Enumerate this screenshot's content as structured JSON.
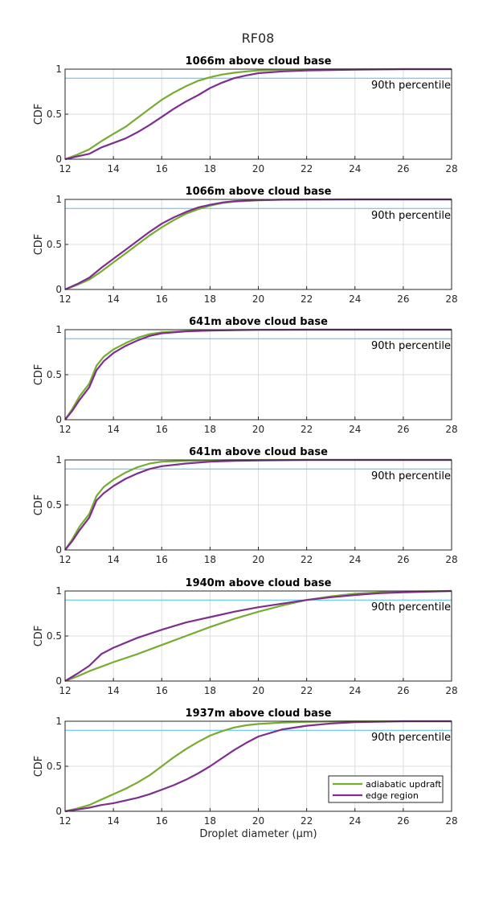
{
  "figure": {
    "title": "RF08"
  },
  "chart_data": [
    {
      "type": "line",
      "title": "1066m above cloud base",
      "ylabel": "CDF",
      "xlim": [
        12,
        28
      ],
      "ylim": [
        0,
        1
      ],
      "xticks": [
        12,
        14,
        16,
        18,
        20,
        22,
        24,
        26,
        28
      ],
      "yticks": [
        0,
        0.5,
        1
      ],
      "grid": true,
      "reference_line": {
        "y": 0.9,
        "label": "90th percentile",
        "color": "#4DBEEE"
      },
      "series": [
        {
          "name": "adiabatic updraft",
          "color": "#77AC30",
          "x": [
            12,
            12.5,
            13,
            13.5,
            14,
            14.5,
            15,
            15.5,
            16,
            16.5,
            17,
            17.5,
            18,
            18.5,
            19,
            19.5,
            20,
            21,
            22,
            23,
            24,
            26,
            28
          ],
          "y": [
            0,
            0.05,
            0.11,
            0.2,
            0.28,
            0.36,
            0.46,
            0.56,
            0.66,
            0.74,
            0.81,
            0.87,
            0.91,
            0.94,
            0.96,
            0.975,
            0.985,
            0.993,
            0.997,
            0.999,
            1,
            1,
            1
          ]
        },
        {
          "name": "edge region",
          "color": "#7E2F8E",
          "x": [
            12,
            12.5,
            13,
            13.5,
            14,
            14.5,
            15,
            15.5,
            16,
            16.5,
            17,
            17.5,
            18,
            18.5,
            19,
            19.5,
            20,
            21,
            22,
            23,
            24,
            26,
            28
          ],
          "y": [
            0,
            0.03,
            0.06,
            0.13,
            0.18,
            0.23,
            0.3,
            0.38,
            0.47,
            0.56,
            0.64,
            0.71,
            0.79,
            0.85,
            0.9,
            0.93,
            0.955,
            0.975,
            0.985,
            0.99,
            0.995,
            1,
            1
          ]
        }
      ]
    },
    {
      "type": "line",
      "title": "1066m above cloud base",
      "ylabel": "CDF",
      "xlim": [
        12,
        28
      ],
      "ylim": [
        0,
        1
      ],
      "xticks": [
        12,
        14,
        16,
        18,
        20,
        22,
        24,
        26,
        28
      ],
      "yticks": [
        0,
        0.5,
        1
      ],
      "grid": true,
      "reference_line": {
        "y": 0.9,
        "label": "90th percentile",
        "color": "#4DBEEE"
      },
      "series": [
        {
          "name": "adiabatic updraft",
          "color": "#77AC30",
          "x": [
            12,
            12.5,
            13,
            13.5,
            14,
            14.5,
            15,
            15.5,
            16,
            16.5,
            17,
            17.5,
            18,
            18.5,
            19,
            20,
            21,
            22,
            24,
            28
          ],
          "y": [
            0,
            0.05,
            0.11,
            0.2,
            0.3,
            0.4,
            0.5,
            0.6,
            0.69,
            0.77,
            0.84,
            0.89,
            0.93,
            0.96,
            0.975,
            0.99,
            0.996,
            0.999,
            1,
            1
          ]
        },
        {
          "name": "edge region",
          "color": "#7E2F8E",
          "x": [
            12,
            12.5,
            13,
            13.5,
            14,
            14.5,
            15,
            15.5,
            16,
            16.5,
            17,
            17.5,
            18,
            18.5,
            19,
            20,
            21,
            22,
            24,
            28
          ],
          "y": [
            0,
            0.06,
            0.13,
            0.24,
            0.34,
            0.44,
            0.54,
            0.64,
            0.73,
            0.8,
            0.86,
            0.91,
            0.94,
            0.965,
            0.98,
            0.992,
            0.997,
            0.999,
            1,
            1
          ]
        }
      ]
    },
    {
      "type": "line",
      "title": "641m above cloud base",
      "ylabel": "CDF",
      "xlim": [
        12,
        28
      ],
      "ylim": [
        0,
        1
      ],
      "xticks": [
        12,
        14,
        16,
        18,
        20,
        22,
        24,
        26,
        28
      ],
      "yticks": [
        0,
        0.5,
        1
      ],
      "grid": true,
      "reference_line": {
        "y": 0.9,
        "label": "90th percentile",
        "color": "#4DBEEE"
      },
      "series": [
        {
          "name": "adiabatic updraft",
          "color": "#77AC30",
          "x": [
            12,
            12.3,
            12.6,
            13,
            13.3,
            13.6,
            14,
            14.5,
            15,
            15.5,
            16,
            17,
            18,
            19,
            20,
            22,
            28
          ],
          "y": [
            0,
            0.12,
            0.26,
            0.4,
            0.6,
            0.7,
            0.78,
            0.85,
            0.91,
            0.95,
            0.97,
            0.985,
            0.992,
            0.996,
            0.998,
            1,
            1
          ]
        },
        {
          "name": "edge region",
          "color": "#7E2F8E",
          "x": [
            12,
            12.3,
            12.6,
            13,
            13.3,
            13.6,
            14,
            14.5,
            15,
            15.5,
            16,
            17,
            18,
            19,
            20,
            22,
            28
          ],
          "y": [
            0,
            0.1,
            0.22,
            0.36,
            0.55,
            0.65,
            0.74,
            0.82,
            0.88,
            0.93,
            0.96,
            0.98,
            0.99,
            0.995,
            0.998,
            1,
            1
          ]
        }
      ]
    },
    {
      "type": "line",
      "title": "641m above cloud base",
      "ylabel": "CDF",
      "xlim": [
        12,
        28
      ],
      "ylim": [
        0,
        1
      ],
      "xticks": [
        12,
        14,
        16,
        18,
        20,
        22,
        24,
        26,
        28
      ],
      "yticks": [
        0,
        0.5,
        1
      ],
      "grid": true,
      "reference_line": {
        "y": 0.9,
        "label": "90th percentile",
        "color": "#4DBEEE"
      },
      "series": [
        {
          "name": "adiabatic updraft",
          "color": "#77AC30",
          "x": [
            12,
            12.3,
            12.6,
            13,
            13.3,
            13.6,
            14,
            14.5,
            15,
            15.5,
            16,
            17,
            18,
            19,
            20,
            22,
            28
          ],
          "y": [
            0,
            0.12,
            0.26,
            0.4,
            0.6,
            0.7,
            0.78,
            0.86,
            0.92,
            0.96,
            0.98,
            0.99,
            0.995,
            0.998,
            1,
            1,
            1
          ]
        },
        {
          "name": "edge region",
          "color": "#7E2F8E",
          "x": [
            12,
            12.3,
            12.6,
            13,
            13.3,
            13.6,
            14,
            14.5,
            15,
            15.5,
            16,
            17,
            18,
            19,
            20,
            22,
            28
          ],
          "y": [
            0,
            0.1,
            0.22,
            0.36,
            0.55,
            0.63,
            0.71,
            0.79,
            0.85,
            0.9,
            0.93,
            0.96,
            0.98,
            0.99,
            0.995,
            1,
            1
          ]
        }
      ]
    },
    {
      "type": "line",
      "title": "1940m above cloud base",
      "ylabel": "CDF",
      "xlim": [
        12,
        28
      ],
      "ylim": [
        0,
        1
      ],
      "xticks": [
        12,
        14,
        16,
        18,
        20,
        22,
        24,
        26,
        28
      ],
      "yticks": [
        0,
        0.5,
        1
      ],
      "grid": true,
      "reference_line": {
        "y": 0.9,
        "label": "90th percentile",
        "color": "#4DBEEE"
      },
      "series": [
        {
          "name": "adiabatic updraft",
          "color": "#77AC30",
          "x": [
            12,
            12.5,
            13,
            13.5,
            14,
            15,
            16,
            17,
            18,
            19,
            20,
            21,
            22,
            23,
            24,
            25,
            26,
            28
          ],
          "y": [
            0,
            0.05,
            0.11,
            0.16,
            0.21,
            0.3,
            0.4,
            0.5,
            0.6,
            0.69,
            0.77,
            0.84,
            0.9,
            0.94,
            0.97,
            0.985,
            0.995,
            1
          ]
        },
        {
          "name": "edge region",
          "color": "#7E2F8E",
          "x": [
            12,
            12.5,
            13,
            13.5,
            14,
            15,
            16,
            17,
            18,
            19,
            20,
            21,
            22,
            23,
            24,
            25,
            26,
            28
          ],
          "y": [
            0,
            0.08,
            0.17,
            0.3,
            0.37,
            0.48,
            0.57,
            0.65,
            0.71,
            0.77,
            0.82,
            0.86,
            0.9,
            0.93,
            0.955,
            0.975,
            0.985,
            1
          ]
        }
      ]
    },
    {
      "type": "line",
      "title": "1937m above cloud base",
      "ylabel": "CDF",
      "xlabel": "Droplet diameter (μm)",
      "xlim": [
        12,
        28
      ],
      "ylim": [
        0,
        1
      ],
      "xticks": [
        12,
        14,
        16,
        18,
        20,
        22,
        24,
        26,
        28
      ],
      "yticks": [
        0,
        0.5,
        1
      ],
      "grid": true,
      "legend": "bottom-right",
      "reference_line": {
        "y": 0.9,
        "label": "90th percentile",
        "color": "#4DBEEE"
      },
      "series": [
        {
          "name": "adiabatic updraft",
          "color": "#77AC30",
          "x": [
            12,
            12.5,
            13,
            13.5,
            14,
            14.5,
            15,
            15.5,
            16,
            16.5,
            17,
            17.5,
            18,
            18.5,
            19,
            19.5,
            20,
            21,
            22,
            23,
            24,
            26,
            28
          ],
          "y": [
            0,
            0.03,
            0.07,
            0.13,
            0.19,
            0.25,
            0.32,
            0.4,
            0.5,
            0.6,
            0.69,
            0.77,
            0.84,
            0.89,
            0.93,
            0.955,
            0.97,
            0.985,
            0.993,
            0.997,
            1,
            1,
            1
          ]
        },
        {
          "name": "edge region",
          "color": "#7E2F8E",
          "x": [
            12,
            12.5,
            13,
            13.5,
            14,
            14.5,
            15,
            15.5,
            16,
            16.5,
            17,
            17.5,
            18,
            18.5,
            19,
            19.5,
            20,
            21,
            22,
            23,
            24,
            26,
            28
          ],
          "y": [
            0,
            0.02,
            0.04,
            0.07,
            0.09,
            0.12,
            0.15,
            0.19,
            0.24,
            0.29,
            0.35,
            0.42,
            0.5,
            0.59,
            0.68,
            0.76,
            0.83,
            0.91,
            0.95,
            0.975,
            0.99,
            1,
            1
          ]
        }
      ]
    }
  ]
}
